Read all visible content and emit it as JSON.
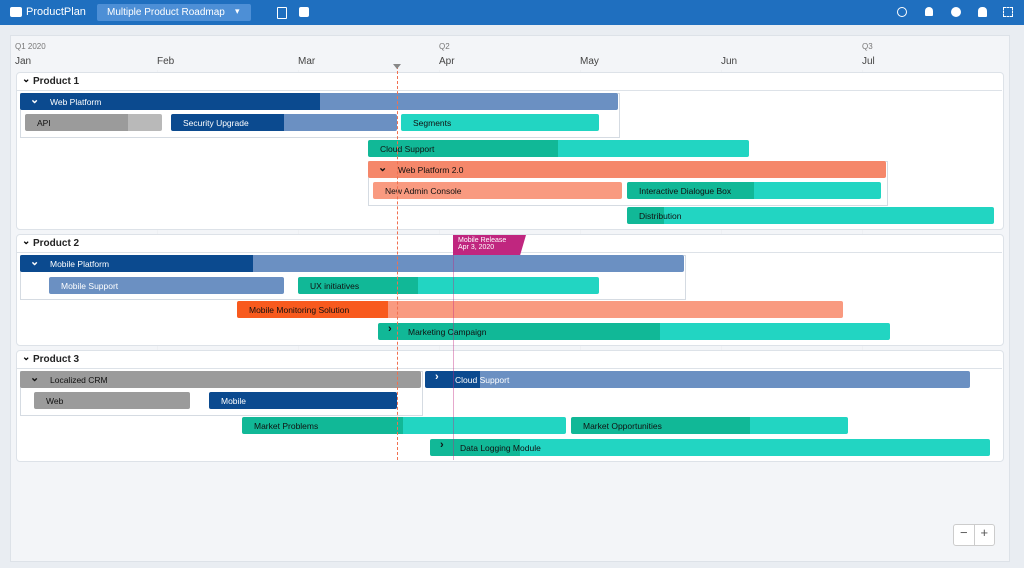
{
  "header": {
    "brand": "ProductPlan",
    "roadmap": "Multiple Product Roadmap"
  },
  "timeline": {
    "quarters": [
      "Q1 2020",
      "Q2",
      "Q3"
    ],
    "months": [
      "Jan",
      "Feb",
      "Mar",
      "Apr",
      "May",
      "Jun",
      "Jul"
    ]
  },
  "milestone": {
    "title": "Mobile Release",
    "date": "Apr 3, 2020"
  },
  "lanes": [
    {
      "name": "Product 1",
      "bars": [
        "Web Platform",
        "API",
        "Security Upgrade",
        "Segments",
        "Cloud Support",
        "Web Platform 2.0",
        "New Admin Console",
        "Interactive Dialogue Box",
        "Distribution"
      ]
    },
    {
      "name": "Product 2",
      "bars": [
        "Mobile Platform",
        "Mobile Support",
        "UX initiatives",
        "Mobile Monitoring Solution",
        "Marketing Campaign"
      ]
    },
    {
      "name": "Product 3",
      "bars": [
        "Localized CRM",
        "Cloud Support",
        "Web",
        "Mobile",
        "Market Problems",
        "Market Opportunities",
        "Data Logging Module"
      ]
    }
  ]
}
